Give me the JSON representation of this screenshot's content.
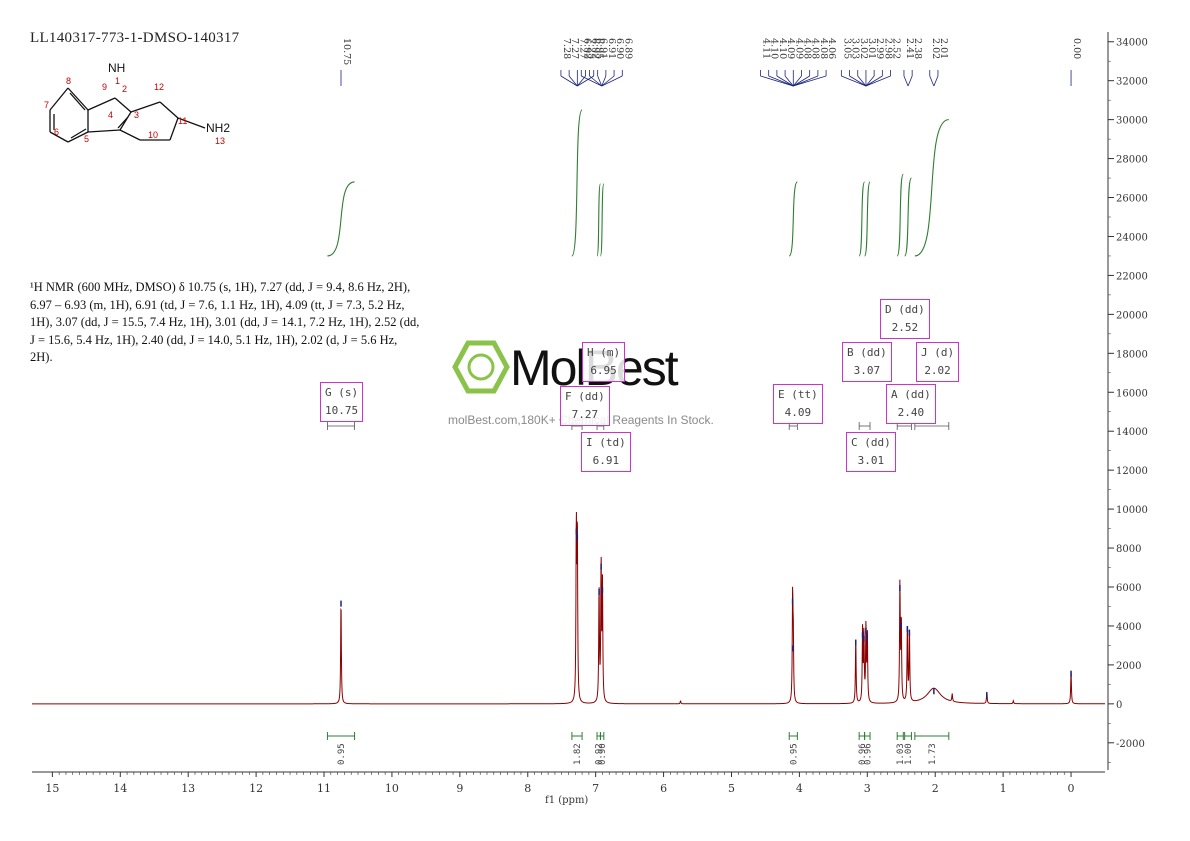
{
  "sample_title": "LL140317-773-1-DMSO-140317",
  "nmr_description": "¹H NMR (600 MHz, DMSO) δ 10.75 (s, 1H), 7.27 (dd, J = 9.4, 8.6 Hz, 2H), 6.97 – 6.93 (m, 1H), 6.91 (td, J = 7.6, 1.1 Hz, 1H), 4.09 (tt, J = 7.3, 5.2 Hz, 1H), 3.07 (dd, J = 15.5, 7.4 Hz, 1H), 3.01 (dd, J = 14.1, 7.2 Hz, 1H), 2.52 (dd, J = 15.6, 5.4 Hz, 1H), 2.40 (dd, J = 14.0, 5.1 Hz, 1H), 2.02 (d, J = 5.6 Hz, 2H).",
  "watermark": {
    "brand": "MolBest",
    "url": "molBest.com,180K+ Chemical Reagents In Stock."
  },
  "molecule": {
    "atom_labels": [
      "1",
      "2",
      "3",
      "4",
      "5",
      "6",
      "7",
      "8",
      "9",
      "10",
      "11",
      "12",
      "13"
    ],
    "nh_label": "NH",
    "nh2_label": "NH2"
  },
  "colors": {
    "spectrum": "#8b0000",
    "integral": "#2e7d32",
    "peak_label_line": "#1a237e",
    "multiplet_box": "#cc33cc",
    "axis": "#333333",
    "atom_number": "#cc0000"
  },
  "chart_data": {
    "type": "line",
    "xlabel": "f1 (ppm)",
    "ylabel": "",
    "x_ticks": [
      "15",
      "14",
      "13",
      "12",
      "11",
      "10",
      "9",
      "8",
      "7",
      "6",
      "5",
      "4",
      "3",
      "2",
      "1",
      "0"
    ],
    "y_ticks": [
      "34000",
      "32000",
      "30000",
      "28000",
      "26000",
      "24000",
      "22000",
      "20000",
      "18000",
      "16000",
      "14000",
      "12000",
      "10000",
      "8000",
      "6000",
      "4000",
      "2000",
      "0",
      "-2000"
    ],
    "xlim": [
      15.3,
      -0.5
    ],
    "ylim": [
      -3500,
      34500
    ],
    "x_reversed": true,
    "peaks": [
      {
        "ppm": 10.75,
        "height": 5300
      },
      {
        "ppm": 7.285,
        "height": 9000
      },
      {
        "ppm": 7.27,
        "height": 8700
      },
      {
        "ppm": 6.95,
        "height": 5900
      },
      {
        "ppm": 6.92,
        "height": 7200
      },
      {
        "ppm": 6.9,
        "height": 6000
      },
      {
        "ppm": 5.75,
        "height": 150
      },
      {
        "ppm": 4.1,
        "height": 5400
      },
      {
        "ppm": 4.09,
        "height": 3000
      },
      {
        "ppm": 3.17,
        "height": 3300
      },
      {
        "ppm": 3.07,
        "height": 3700
      },
      {
        "ppm": 3.05,
        "height": 3500
      },
      {
        "ppm": 3.02,
        "height": 3900
      },
      {
        "ppm": 3.0,
        "height": 3600
      },
      {
        "ppm": 2.52,
        "height": 6100
      },
      {
        "ppm": 2.5,
        "height": 4200
      },
      {
        "ppm": 2.41,
        "height": 4000
      },
      {
        "ppm": 2.38,
        "height": 3800
      },
      {
        "ppm": 2.02,
        "height": 800
      },
      {
        "ppm": 1.75,
        "height": 400
      },
      {
        "ppm": 1.24,
        "height": 600
      },
      {
        "ppm": 0.85,
        "height": 150
      },
      {
        "ppm": 0.0,
        "height": 1700
      }
    ],
    "peak_labels": [
      {
        "values": [
          "10.75"
        ],
        "at": 10.75
      },
      {
        "values": [
          "7.28",
          "7.27",
          "7.27",
          "7.25",
          "6.95"
        ],
        "at": 7.27
      },
      {
        "values": [
          "6.92",
          "6.92",
          "6.91",
          "6.91",
          "6.90",
          "6.89"
        ],
        "at": 6.91
      },
      {
        "values": [
          "4.11",
          "4.10",
          "4.10",
          "4.09",
          "4.09",
          "4.08",
          "4.08",
          "4.08",
          "4.06"
        ],
        "at": 4.09
      },
      {
        "values": [
          "3.05",
          "3.03",
          "3.02",
          "3.01",
          "2.99",
          "2.98",
          "2.52"
        ],
        "at": 3.02
      },
      {
        "values": [
          "2.41",
          "2.38"
        ],
        "at": 2.4
      },
      {
        "values": [
          "2.02",
          "2.01"
        ],
        "at": 2.02
      },
      {
        "values": [
          "0.00"
        ],
        "at": 0.0
      }
    ],
    "multiplets": [
      {
        "letter": "G",
        "mult": "(s)",
        "shift": "10.75"
      },
      {
        "letter": "H",
        "mult": "(m)",
        "shift": "6.95"
      },
      {
        "letter": "F",
        "mult": "(dd)",
        "shift": "7.27"
      },
      {
        "letter": "I",
        "mult": "(td)",
        "shift": "6.91"
      },
      {
        "letter": "E",
        "mult": "(tt)",
        "shift": "4.09"
      },
      {
        "letter": "D",
        "mult": "(dd)",
        "shift": "2.52"
      },
      {
        "letter": "B",
        "mult": "(dd)",
        "shift": "3.07"
      },
      {
        "letter": "J",
        "mult": "(d)",
        "shift": "2.02"
      },
      {
        "letter": "A",
        "mult": "(dd)",
        "shift": "2.40"
      },
      {
        "letter": "C",
        "mult": "(dd)",
        "shift": "3.01"
      }
    ],
    "integrals": [
      {
        "from": 10.95,
        "to": 10.55,
        "value": "0.95",
        "rise": 3800
      },
      {
        "from": 7.35,
        "to": 7.2,
        "value": "1.82",
        "rise": 7500
      },
      {
        "from": 6.98,
        "to": 6.93,
        "value": "0.92",
        "rise": 3700
      },
      {
        "from": 6.93,
        "to": 6.88,
        "value": "0.90",
        "rise": 3700
      },
      {
        "from": 4.15,
        "to": 4.03,
        "value": "0.95",
        "rise": 3800
      },
      {
        "from": 3.12,
        "to": 3.04,
        "value": "0.96",
        "rise": 3800
      },
      {
        "from": 3.04,
        "to": 2.96,
        "value": "0.96",
        "rise": 3800
      },
      {
        "from": 2.56,
        "to": 2.47,
        "value": "1.03",
        "rise": 4200
      },
      {
        "from": 2.45,
        "to": 2.35,
        "value": "1.00",
        "rise": 4000
      },
      {
        "from": 2.3,
        "to": 1.8,
        "value": "1.73",
        "rise": 7000
      }
    ]
  }
}
